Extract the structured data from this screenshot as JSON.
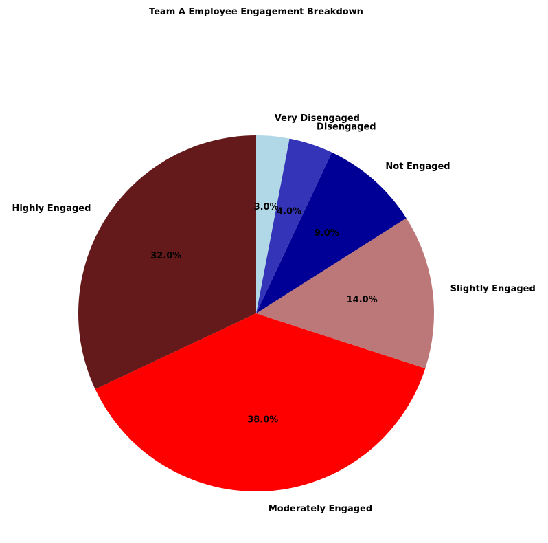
{
  "chart_data": {
    "type": "pie",
    "title": "Team A Employee Engagement Breakdown",
    "categories": [
      "Highly Engaged",
      "Moderately Engaged",
      "Slightly Engaged",
      "Not Engaged",
      "Disengaged",
      "Very Disengaged"
    ],
    "values": [
      32.0,
      38.0,
      14.0,
      9.0,
      4.0,
      3.0
    ],
    "percent_labels": [
      "32.0%",
      "38.0%",
      "14.0%",
      "9.0%",
      "4.0%",
      "3.0%"
    ],
    "colors": [
      "#641a1a",
      "#ff0000",
      "#bc7878",
      "#000096",
      "#3434b8",
      "#b0d8e6"
    ],
    "start_angle": "90 degrees (top)",
    "direction": "counterclockwise",
    "legend": "none"
  }
}
